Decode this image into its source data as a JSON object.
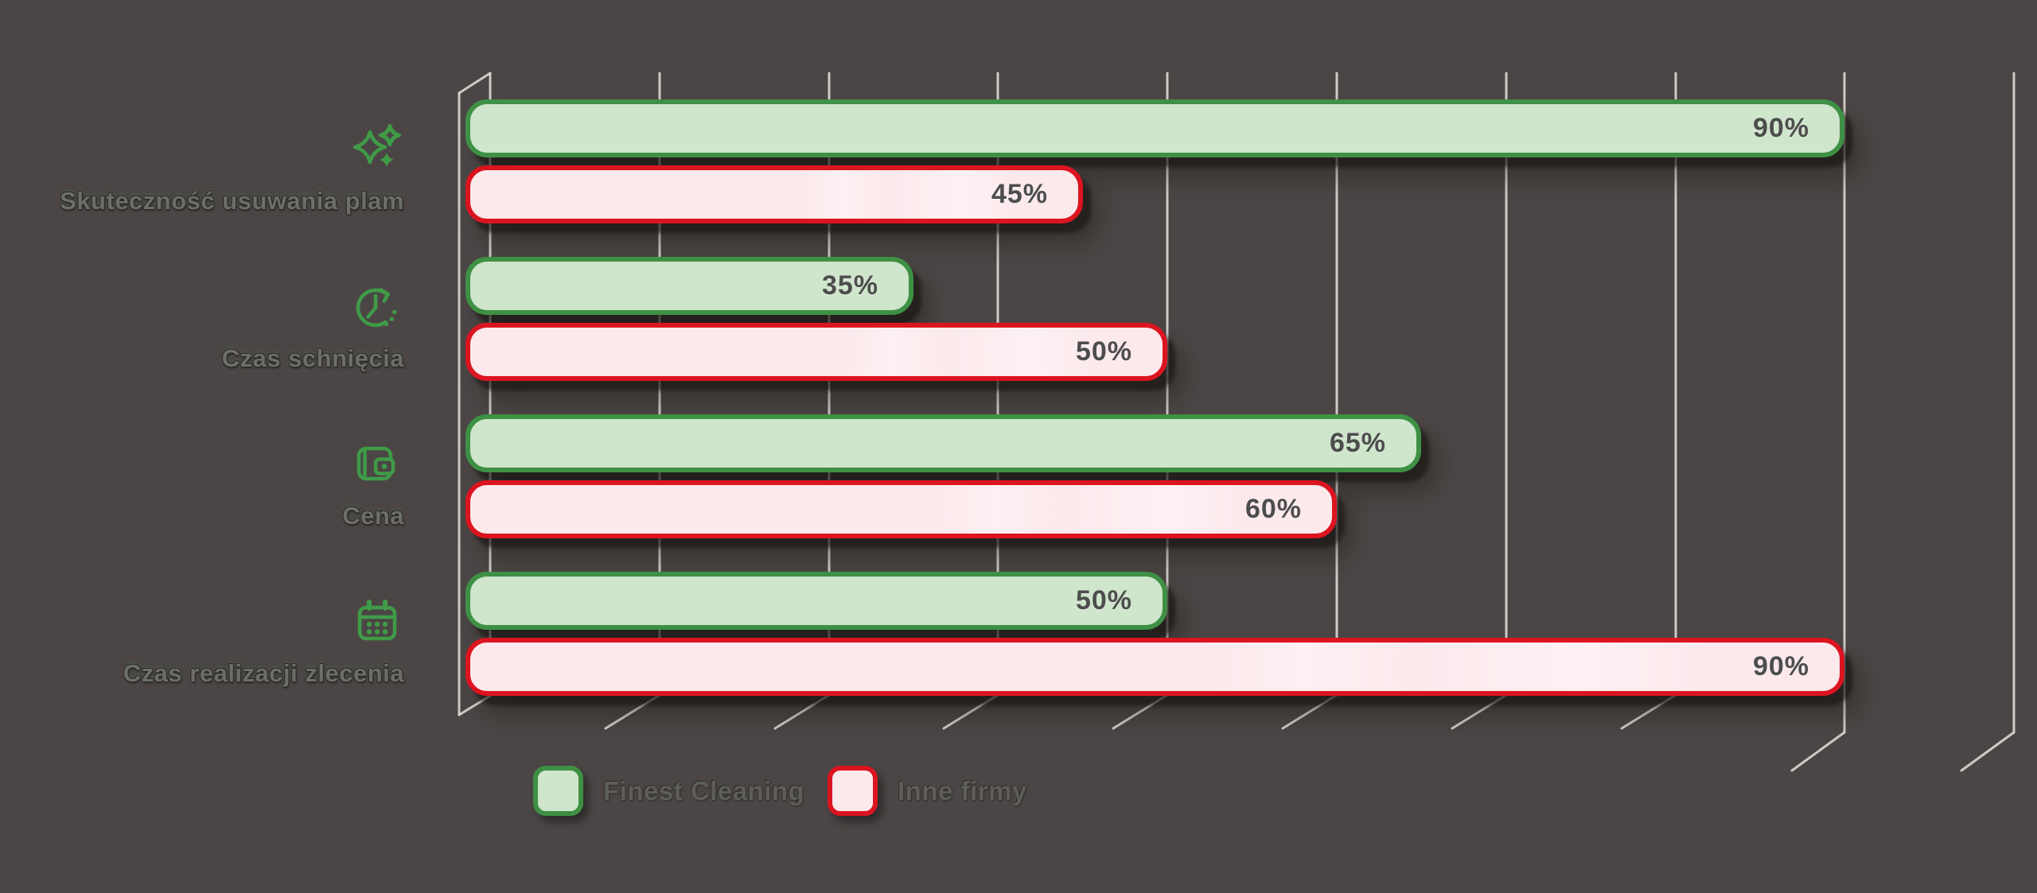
{
  "colors": {
    "background": "#4b4645",
    "gridline": "#d8d5d1",
    "series_green_border": "#3e9044",
    "series_green_fill": "#cfe5cc",
    "series_pink_border": "#dc1420",
    "series_pink_fill": "#fbe9ec",
    "icon_green": "#3f9b47",
    "value_text": "#4d4d4d",
    "category_text": "#6e6e68",
    "legend_text": "#5e5e58"
  },
  "chart_data": {
    "type": "bar",
    "orientation": "horizontal",
    "categories": [
      "Skuteczność usuwania plam",
      "Czas schnięcia",
      "Cena",
      "Czas realizacji zlecenia"
    ],
    "category_icons": [
      "sparkles-icon",
      "clock-history-icon",
      "wallet-icon",
      "calendar-icon"
    ],
    "series": [
      {
        "name": "Finest Cleaning",
        "color_key": "green",
        "values": [
          90,
          35,
          65,
          50
        ]
      },
      {
        "name": "Inne firmy",
        "color_key": "pink",
        "values": [
          45,
          50,
          60,
          90
        ]
      }
    ],
    "value_labels": [
      [
        "90%",
        "45%"
      ],
      [
        "35%",
        "50%"
      ],
      [
        "65%",
        "60%"
      ],
      [
        "50%",
        "90%"
      ]
    ],
    "unit": "%",
    "axis_range": [
      10,
      100
    ],
    "gridline_step_percent": 10,
    "grid": true,
    "grid_style": "vertical-lines-with-3d-floor-ticks",
    "legend_position": "bottom-left"
  },
  "legend": {
    "items": [
      {
        "label": "Finest Cleaning",
        "swatch": "green"
      },
      {
        "label": "Inne firmy",
        "swatch": "pink"
      }
    ]
  }
}
